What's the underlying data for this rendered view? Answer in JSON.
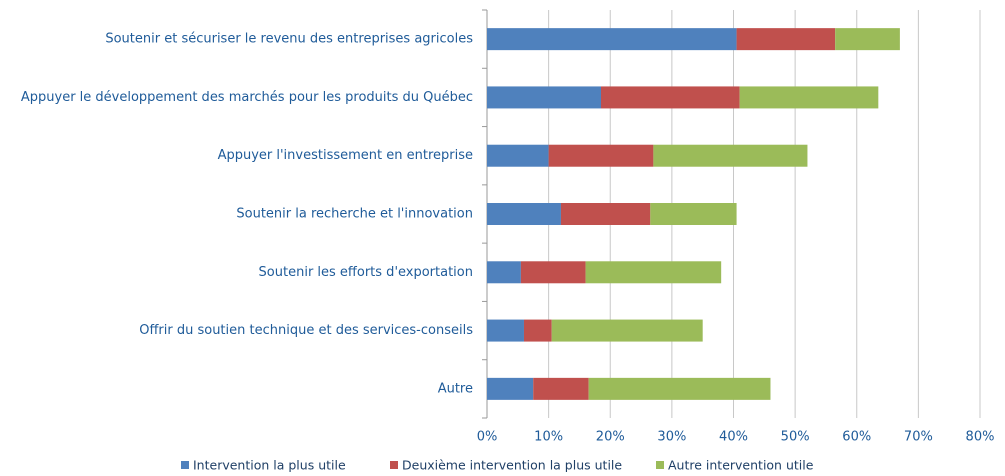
{
  "chart_data": {
    "type": "stacked_barh",
    "categories": [
      "Soutenir et sécuriser le revenu des entreprises agricoles",
      "Appuyer le développement des marchés pour les produits du Québec",
      "Appuyer l'investissement en entreprise",
      "Soutenir la recherche et l'innovation",
      "Soutenir les efforts d'exportation",
      "Offrir du soutien technique et des services-conseils",
      "Autre"
    ],
    "series": [
      {
        "name": "Intervention la plus utile",
        "color": "#4f81bd",
        "values": [
          40.5,
          18.5,
          10,
          12,
          5.5,
          6,
          7.5
        ]
      },
      {
        "name": "Deuxième intervention la plus utile",
        "color": "#c0504d",
        "values": [
          16,
          22.5,
          17,
          14.5,
          10.5,
          4.5,
          9
        ]
      },
      {
        "name": "Autre intervention utile",
        "color": "#9bbb59",
        "values": [
          10.5,
          22.5,
          25,
          14,
          22,
          24.5,
          29.5
        ]
      }
    ],
    "xlim": [
      0,
      80
    ],
    "xticks": [
      {
        "value": 0,
        "label": "0%"
      },
      {
        "value": 10,
        "label": "10%"
      },
      {
        "value": 20,
        "label": "20%"
      },
      {
        "value": 30,
        "label": "30%"
      },
      {
        "value": 40,
        "label": "40%"
      },
      {
        "value": 50,
        "label": "50%"
      },
      {
        "value": 60,
        "label": "60%"
      },
      {
        "value": 70,
        "label": "70%"
      },
      {
        "value": 80,
        "label": "80%"
      }
    ],
    "grid": true,
    "legend": "bottom"
  }
}
